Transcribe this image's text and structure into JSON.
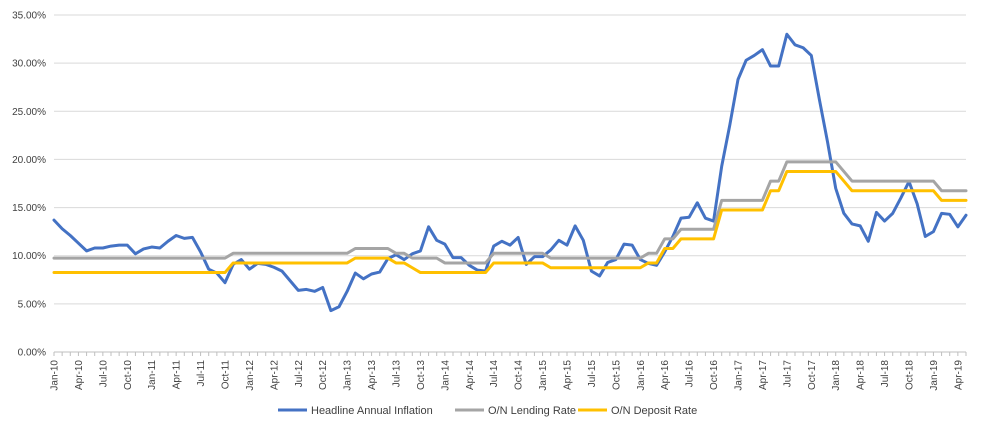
{
  "chart_data": {
    "type": "line",
    "title": "",
    "xlabel": "",
    "ylabel": "",
    "ylim": [
      0,
      35
    ],
    "y_ticks": [
      0,
      5,
      10,
      15,
      20,
      25,
      30,
      35
    ],
    "y_tick_labels": [
      "0.00%",
      "5.00%",
      "10.00%",
      "15.00%",
      "20.00%",
      "25.00%",
      "30.00%",
      "35.00%"
    ],
    "x_tick_labels": [
      "Jan-10",
      "Apr-10",
      "Jul-10",
      "Oct-10",
      "Jan-11",
      "Apr-11",
      "Jul-11",
      "Oct-11",
      "Jan-12",
      "Apr-12",
      "Jul-12",
      "Oct-12",
      "Jan-13",
      "Apr-13",
      "Jul-13",
      "Oct-13",
      "Jan-14",
      "Apr-14",
      "Jul-14",
      "Oct-14",
      "Jan-15",
      "Apr-15",
      "Jul-15",
      "Oct-15",
      "Jan-16",
      "Apr-16",
      "Jul-16",
      "Oct-16",
      "Jan-17",
      "Apr-17",
      "Jul-17",
      "Oct-17",
      "Jan-18",
      "Apr-18",
      "Jul-18",
      "Oct-18",
      "Jan-19",
      "Apr-19"
    ],
    "x_start": "Jan-10",
    "grid": "horizontal",
    "legend_position": "bottom",
    "series": [
      {
        "name": "Headline Annual Inflation",
        "color": "#4472C4",
        "values": [
          13.7,
          12.8,
          12.1,
          11.3,
          10.5,
          10.8,
          10.8,
          11.0,
          11.1,
          11.1,
          10.2,
          10.7,
          10.9,
          10.8,
          11.5,
          12.1,
          11.8,
          11.9,
          10.4,
          8.6,
          8.2,
          7.2,
          9.1,
          9.6,
          8.6,
          9.2,
          9.1,
          8.8,
          8.4,
          7.4,
          6.4,
          6.5,
          6.3,
          6.7,
          4.3,
          4.7,
          6.3,
          8.2,
          7.6,
          8.1,
          8.3,
          9.7,
          10.1,
          9.6,
          10.2,
          10.5,
          13.0,
          11.6,
          11.2,
          9.8,
          9.8,
          9.0,
          8.5,
          8.4,
          11.0,
          11.5,
          11.1,
          11.9,
          9.1,
          9.9,
          9.9,
          10.6,
          11.6,
          11.1,
          13.1,
          11.6,
          8.4,
          7.9,
          9.3,
          9.6,
          11.2,
          11.1,
          9.6,
          9.2,
          9.0,
          10.4,
          12.0,
          13.9,
          14.0,
          15.5,
          13.9,
          13.6,
          19.3,
          23.6,
          28.3,
          30.3,
          30.8,
          31.4,
          29.7,
          29.7,
          33.0,
          31.9,
          31.6,
          30.8,
          26.2,
          21.8,
          17.0,
          14.4,
          13.3,
          13.1,
          11.5,
          14.5,
          13.6,
          14.4,
          16.0,
          17.7,
          15.4,
          12.0,
          12.5,
          14.4,
          14.3,
          13.0,
          14.2
        ]
      },
      {
        "name": "O/N Lending Rate",
        "color": "#A5A5A5",
        "values": [
          9.75,
          9.75,
          9.75,
          9.75,
          9.75,
          9.75,
          9.75,
          9.75,
          9.75,
          9.75,
          9.75,
          9.75,
          9.75,
          9.75,
          9.75,
          9.75,
          9.75,
          9.75,
          9.75,
          9.75,
          9.75,
          9.75,
          10.25,
          10.25,
          10.25,
          10.25,
          10.25,
          10.25,
          10.25,
          10.25,
          10.25,
          10.25,
          10.25,
          10.25,
          10.25,
          10.25,
          10.25,
          10.75,
          10.75,
          10.75,
          10.75,
          10.75,
          10.25,
          10.25,
          9.75,
          9.75,
          9.75,
          9.75,
          9.25,
          9.25,
          9.25,
          9.25,
          9.25,
          9.25,
          10.25,
          10.25,
          10.25,
          10.25,
          10.25,
          10.25,
          10.25,
          9.75,
          9.75,
          9.75,
          9.75,
          9.75,
          9.75,
          9.75,
          9.75,
          9.75,
          9.75,
          9.75,
          9.75,
          10.25,
          10.25,
          11.75,
          11.75,
          12.75,
          12.75,
          12.75,
          12.75,
          12.75,
          15.75,
          15.75,
          15.75,
          15.75,
          15.75,
          15.75,
          17.75,
          17.75,
          19.75,
          19.75,
          19.75,
          19.75,
          19.75,
          19.75,
          19.75,
          18.75,
          17.75,
          17.75,
          17.75,
          17.75,
          17.75,
          17.75,
          17.75,
          17.75,
          17.75,
          17.75,
          17.75,
          16.75,
          16.75,
          16.75,
          16.75
        ]
      },
      {
        "name": "O/N Deposit Rate",
        "color": "#FFC000",
        "values": [
          8.25,
          8.25,
          8.25,
          8.25,
          8.25,
          8.25,
          8.25,
          8.25,
          8.25,
          8.25,
          8.25,
          8.25,
          8.25,
          8.25,
          8.25,
          8.25,
          8.25,
          8.25,
          8.25,
          8.25,
          8.25,
          8.25,
          9.25,
          9.25,
          9.25,
          9.25,
          9.25,
          9.25,
          9.25,
          9.25,
          9.25,
          9.25,
          9.25,
          9.25,
          9.25,
          9.25,
          9.25,
          9.75,
          9.75,
          9.75,
          9.75,
          9.75,
          9.25,
          9.25,
          8.75,
          8.25,
          8.25,
          8.25,
          8.25,
          8.25,
          8.25,
          8.25,
          8.25,
          8.25,
          9.25,
          9.25,
          9.25,
          9.25,
          9.25,
          9.25,
          9.25,
          8.75,
          8.75,
          8.75,
          8.75,
          8.75,
          8.75,
          8.75,
          8.75,
          8.75,
          8.75,
          8.75,
          8.75,
          9.25,
          9.25,
          10.75,
          10.75,
          11.75,
          11.75,
          11.75,
          11.75,
          11.75,
          14.75,
          14.75,
          14.75,
          14.75,
          14.75,
          14.75,
          16.75,
          16.75,
          18.75,
          18.75,
          18.75,
          18.75,
          18.75,
          18.75,
          18.75,
          17.75,
          16.75,
          16.75,
          16.75,
          16.75,
          16.75,
          16.75,
          16.75,
          16.75,
          16.75,
          16.75,
          16.75,
          15.75,
          15.75,
          15.75,
          15.75
        ]
      }
    ]
  }
}
